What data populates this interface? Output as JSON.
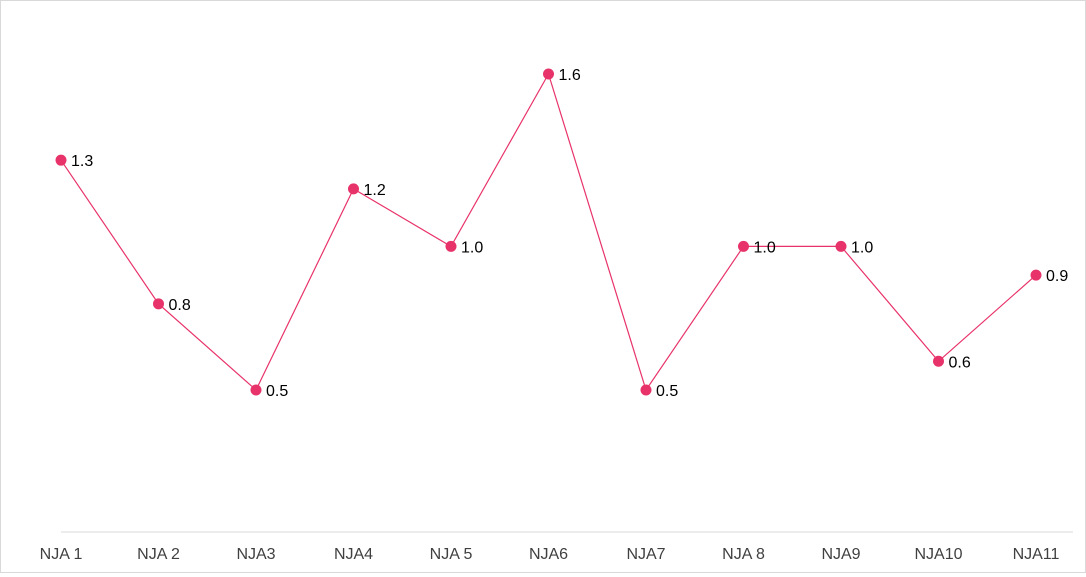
{
  "chart_data": {
    "type": "line",
    "categories": [
      "NJA 1",
      "NJA 2",
      "NJA3",
      "NJA4",
      "NJA 5",
      "NJA6",
      "NJA7",
      "NJA 8",
      "NJA9",
      "NJA10",
      "NJA11"
    ],
    "series": [
      {
        "values": [
          1.3,
          0.8,
          0.5,
          1.2,
          1.0,
          1.6,
          0.5,
          1.0,
          1.0,
          0.6,
          0.9
        ],
        "labels": [
          "1.3",
          "0.8",
          "0.5",
          "1.2",
          "1.0",
          "1.6",
          "0.5",
          "1.0",
          "1.0",
          "0.6",
          "0.9"
        ],
        "color": "#e8336a"
      }
    ],
    "title": "",
    "xlabel": "",
    "ylabel": "",
    "ylim": [
      0,
      1.8
    ],
    "grid": false,
    "legend": "none",
    "axis_line_color": "#d9d9d9"
  }
}
